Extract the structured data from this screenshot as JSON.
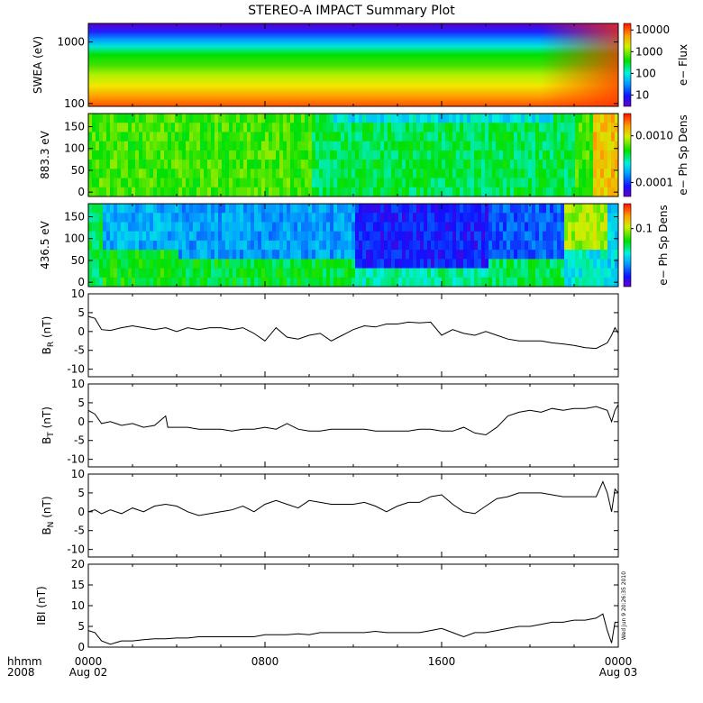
{
  "title": "STEREO-A IMPACT Summary Plot",
  "x_axis": {
    "ticks": [
      "0000",
      "0800",
      "1600",
      "0000"
    ],
    "tick_dates": [
      "Aug 02",
      "",
      "",
      "Aug 03"
    ],
    "format_label": "hhmm",
    "year_label": "2008",
    "range_hours": [
      0,
      24
    ]
  },
  "timestamp": "Wed Jun  9 20:26:35 2010",
  "colors": {
    "line": "#000000",
    "background": "#ffffff"
  },
  "chart_data": [
    {
      "type": "heatmap",
      "id": "swea",
      "ylabel": "SWEA (eV)",
      "y_scale": "log",
      "ylim": [
        90,
        2000
      ],
      "yticks": [
        "100",
        "1000"
      ],
      "ytick_values": [
        100,
        1000
      ],
      "colorbar": {
        "label": "e− Flux",
        "scale": "log",
        "range": [
          3,
          20000
        ],
        "ticks": [
          "10000",
          "1000",
          "100",
          "10"
        ],
        "tick_values": [
          10000,
          1000,
          100,
          10
        ]
      },
      "description": "high flux (red/orange) at ~100 eV, green ~300-600 eV, blue/purple above ~1000 eV; hotter near 2200-2400"
    },
    {
      "type": "heatmap",
      "id": "pad883",
      "ylabel": "883.3 eV",
      "ylim": [
        -10,
        180
      ],
      "yticks": [
        "0",
        "50",
        "100",
        "150"
      ],
      "ytick_values": [
        0,
        50,
        100,
        150
      ],
      "colorbar": {
        "label": "e− Ph Sp Dens",
        "scale": "log",
        "range": [
          5e-05,
          0.003
        ],
        "ticks": [
          "0.0010",
          "0.0001"
        ],
        "tick_values": [
          0.001,
          0.0001
        ]
      }
    },
    {
      "type": "heatmap",
      "id": "pad436",
      "ylabel": "436.5 eV",
      "ylim": [
        -10,
        180
      ],
      "yticks": [
        "0",
        "50",
        "100",
        "150"
      ],
      "ytick_values": [
        0,
        50,
        100,
        150
      ],
      "colorbar": {
        "label": "e− Ph Sp Dens",
        "scale": "log",
        "range": [
          0.02,
          0.2
        ],
        "ticks": [
          "0.1"
        ],
        "tick_values": [
          0.1
        ]
      }
    },
    {
      "type": "line",
      "id": "br",
      "ylabel_main": "B",
      "ylabel_sub": "R",
      "ylabel_unit": " (nT)",
      "ylim": [
        -12,
        10
      ],
      "yticks": [
        "10",
        "5",
        "0",
        "-5",
        "-10"
      ],
      "ytick_values": [
        10,
        5,
        0,
        -5,
        -10
      ],
      "x": [
        0,
        0.3,
        0.6,
        1,
        1.5,
        2,
        2.5,
        3,
        3.5,
        4,
        4.5,
        5,
        5.5,
        6,
        6.5,
        7,
        7.5,
        8,
        8.5,
        9,
        9.5,
        10,
        10.5,
        11,
        11.5,
        12,
        12.5,
        13,
        13.5,
        14,
        14.5,
        15,
        15.5,
        16,
        16.5,
        17,
        17.5,
        18,
        18.5,
        19,
        19.5,
        20,
        20.5,
        21,
        21.5,
        22,
        22.5,
        23,
        23.5,
        23.7,
        23.85,
        24
      ],
      "y": [
        4,
        3.5,
        0.5,
        0.3,
        1,
        1.5,
        1,
        0.5,
        1,
        0,
        1,
        0.5,
        1,
        1,
        0.5,
        1,
        -0.5,
        -2.5,
        1,
        -1.5,
        -2,
        -1,
        -0.5,
        -2.5,
        -1,
        0.5,
        1.5,
        1.2,
        2,
        2,
        2.5,
        2.3,
        2.5,
        -1,
        0.5,
        -0.5,
        -1,
        0,
        -1,
        -2,
        -2.5,
        -2.5,
        -2.5,
        -3,
        -3.3,
        -3.7,
        -4.3,
        -4.5,
        -3,
        -1,
        1,
        -0.5
      ]
    },
    {
      "type": "line",
      "id": "bt",
      "ylabel_main": "B",
      "ylabel_sub": "T",
      "ylabel_unit": " (nT)",
      "ylim": [
        -12,
        10
      ],
      "yticks": [
        "10",
        "5",
        "0",
        "-5",
        "-10"
      ],
      "ytick_values": [
        10,
        5,
        0,
        -5,
        -10
      ],
      "x": [
        0,
        0.3,
        0.6,
        1,
        1.5,
        2,
        2.5,
        3,
        3.4,
        3.5,
        3.6,
        4,
        4.5,
        5,
        5.5,
        6,
        6.5,
        7,
        7.5,
        8,
        8.5,
        9,
        9.5,
        10,
        10.5,
        11,
        11.5,
        12,
        12.5,
        13,
        13.5,
        14,
        14.5,
        15,
        15.5,
        16,
        16.5,
        17,
        17.5,
        18,
        18.5,
        19,
        19.5,
        20,
        20.5,
        21,
        21.5,
        22,
        22.5,
        23,
        23.5,
        23.7,
        23.85,
        24
      ],
      "y": [
        3,
        2,
        -0.5,
        0,
        -1,
        -0.5,
        -1.5,
        -1,
        1,
        1.5,
        -1.5,
        -1.5,
        -1.5,
        -2,
        -2,
        -2,
        -2.5,
        -2,
        -2,
        -1.5,
        -2,
        -0.5,
        -2,
        -2.5,
        -2.5,
        -2,
        -2,
        -2,
        -2,
        -2.5,
        -2.5,
        -2.5,
        -2.5,
        -2,
        -2,
        -2.5,
        -2.5,
        -1.5,
        -3,
        -3.5,
        -1.5,
        1.5,
        2.5,
        3,
        2.5,
        3.5,
        3,
        3.5,
        3.5,
        4,
        3,
        0,
        3,
        4.5
      ]
    },
    {
      "type": "line",
      "id": "bn",
      "ylabel_main": "B",
      "ylabel_sub": "N",
      "ylabel_unit": " (nT)",
      "ylim": [
        -12,
        10
      ],
      "yticks": [
        "10",
        "5",
        "0",
        "-5",
        "-10"
      ],
      "ytick_values": [
        10,
        5,
        0,
        -5,
        -10
      ],
      "x": [
        0,
        0.3,
        0.6,
        1,
        1.5,
        2,
        2.5,
        3,
        3.5,
        4,
        4.5,
        5,
        5.5,
        6,
        6.5,
        7,
        7.5,
        8,
        8.5,
        9,
        9.5,
        10,
        10.5,
        11,
        11.5,
        12,
        12.5,
        13,
        13.5,
        14,
        14.5,
        15,
        15.5,
        16,
        16.5,
        17,
        17.5,
        18,
        18.5,
        19,
        19.5,
        20,
        20.5,
        21,
        21.5,
        22,
        22.5,
        23,
        23.3,
        23.5,
        23.7,
        23.85,
        24
      ],
      "y": [
        0,
        0.5,
        -0.5,
        0.5,
        -0.5,
        1,
        0,
        1.5,
        2,
        1.5,
        0,
        -1,
        -0.5,
        0,
        0.5,
        1.5,
        0,
        2,
        3,
        2,
        1,
        3,
        2.5,
        2,
        2,
        2,
        2.5,
        1.5,
        0,
        1.5,
        2.5,
        2.5,
        4,
        4.5,
        2,
        0,
        -0.5,
        1.5,
        3.5,
        4,
        5,
        5,
        5,
        4.5,
        4,
        4,
        4,
        4,
        8,
        5,
        0,
        6,
        5
      ]
    },
    {
      "type": "line",
      "id": "btot",
      "ylabel_main": "IBI",
      "ylabel_sub": "",
      "ylabel_unit": " (nT)",
      "ylim": [
        0,
        20
      ],
      "yticks": [
        "20",
        "15",
        "10",
        "5",
        "0"
      ],
      "ytick_values": [
        20,
        15,
        10,
        5,
        0
      ],
      "x": [
        0,
        0.3,
        0.6,
        1,
        1.5,
        2,
        2.5,
        3,
        3.5,
        4,
        4.5,
        5,
        5.5,
        6,
        6.5,
        7,
        7.5,
        8,
        8.5,
        9,
        9.5,
        10,
        10.5,
        11,
        11.5,
        12,
        12.5,
        13,
        13.5,
        14,
        14.5,
        15,
        15.5,
        16,
        16.5,
        17,
        17.5,
        18,
        18.5,
        19,
        19.5,
        20,
        20.5,
        21,
        21.5,
        22,
        22.5,
        23,
        23.3,
        23.5,
        23.7,
        23.85,
        24
      ],
      "y": [
        4,
        3.5,
        1.5,
        0.7,
        1.5,
        1.5,
        1.8,
        2,
        2,
        2.2,
        2.2,
        2.5,
        2.5,
        2.5,
        2.5,
        2.5,
        2.5,
        3,
        3,
        3,
        3.2,
        3,
        3.5,
        3.5,
        3.5,
        3.5,
        3.5,
        3.8,
        3.5,
        3.5,
        3.5,
        3.5,
        4,
        4.5,
        3.5,
        2.5,
        3.5,
        3.5,
        4,
        4.5,
        5,
        5,
        5.5,
        6,
        6,
        6.5,
        6.5,
        7,
        8,
        4,
        1,
        6,
        6
      ]
    }
  ]
}
